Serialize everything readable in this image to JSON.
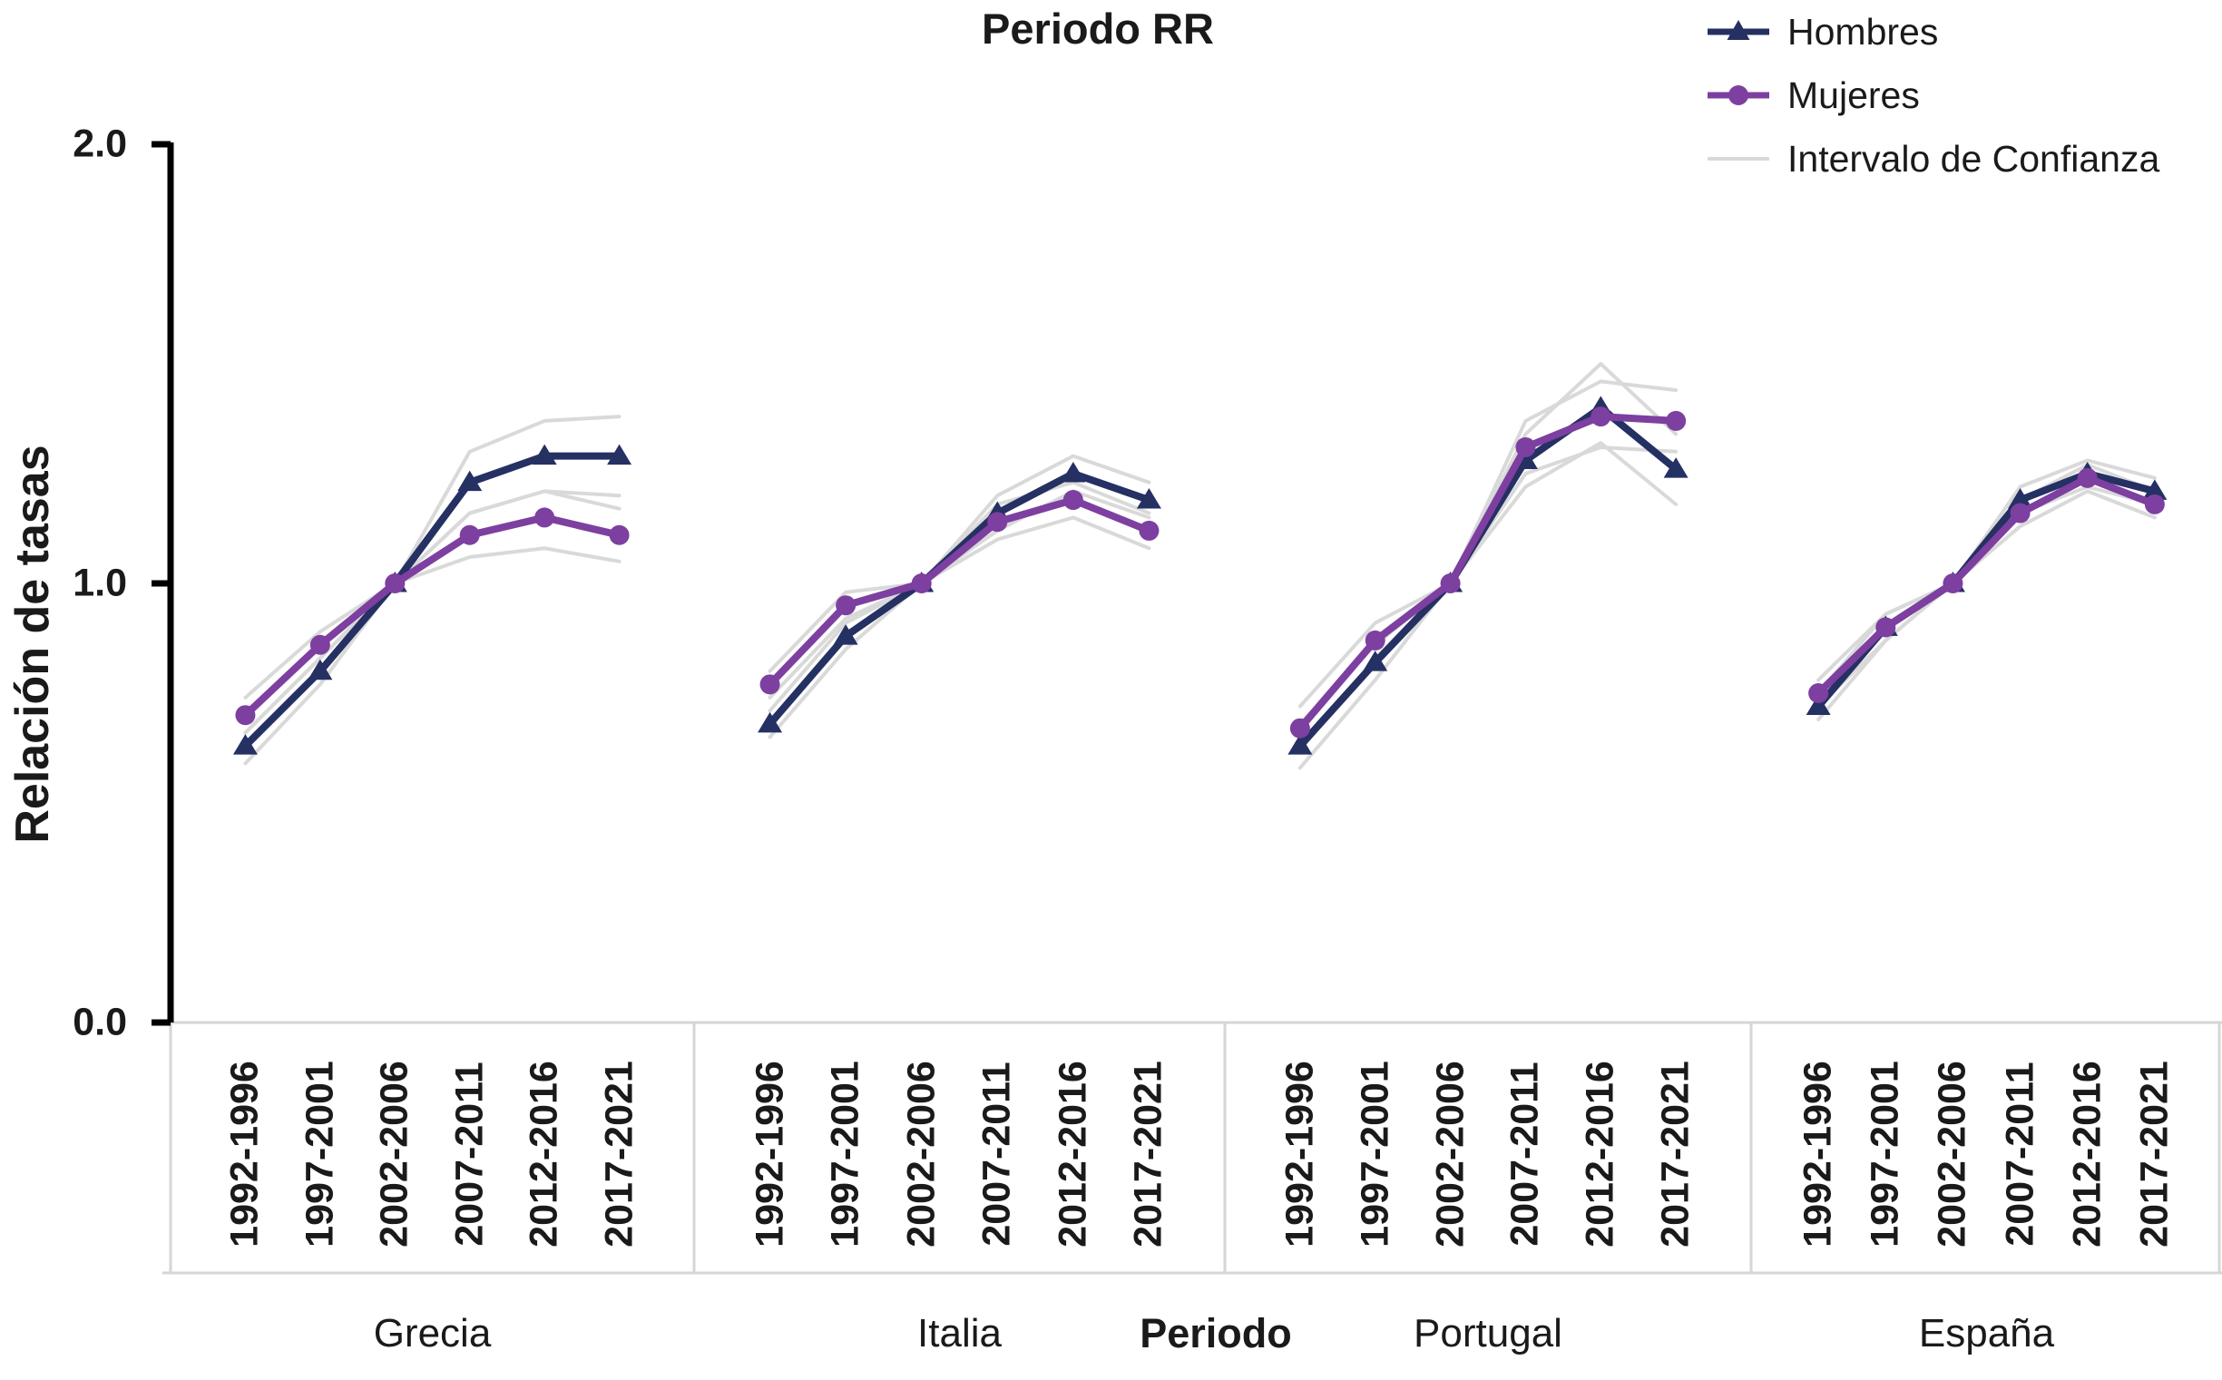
{
  "title": "Periodo RR",
  "y_axis": {
    "label": "Relación de tasas",
    "tick_labels": [
      "0.0",
      "1.0",
      "2.0"
    ]
  },
  "x_axis": {
    "label": "Periodo"
  },
  "legend": [
    {
      "label": "Hombres",
      "swatch": "line-triangle",
      "series": "hombres"
    },
    {
      "label": "Mujeres",
      "swatch": "line-circle",
      "series": "mujeres"
    },
    {
      "label": "Intervalo de Confianza",
      "swatch": "line",
      "series": "ci"
    }
  ],
  "colors": {
    "hombres": "#253063",
    "mujeres": "#7d3fa0",
    "ci": "#d9d9d9",
    "axis": "#000000",
    "band_line": "#d6d6d6",
    "text": "#1a1a1a"
  },
  "chart_data": {
    "type": "line",
    "title": "Periodo RR",
    "xlabel": "Periodo",
    "ylabel": "Relación de tasas",
    "ylim": [
      0.0,
      2.0
    ],
    "y_ticks": [
      0.0,
      1.0,
      2.0
    ],
    "grid": false,
    "legend_position": "top-right",
    "categories": [
      "1992-1996",
      "1997-2001",
      "2002-2006",
      "2007-2011",
      "2012-2016",
      "2017-2021"
    ],
    "reference_period": "2002-2006",
    "panels": [
      {
        "country": "Grecia",
        "series": [
          {
            "name": "Hombres",
            "values": [
              0.63,
              0.8,
              1.0,
              1.23,
              1.29,
              1.29
            ],
            "ci_low": [
              0.59,
              0.77,
              1.0,
              1.16,
              1.21,
              1.2
            ],
            "ci_high": [
              0.66,
              0.83,
              1.0,
              1.3,
              1.37,
              1.38
            ]
          },
          {
            "name": "Mujeres",
            "values": [
              0.7,
              0.86,
              1.0,
              1.11,
              1.15,
              1.11
            ],
            "ci_low": [
              0.66,
              0.83,
              1.0,
              1.06,
              1.08,
              1.05
            ],
            "ci_high": [
              0.74,
              0.89,
              1.0,
              1.16,
              1.21,
              1.17
            ]
          }
        ]
      },
      {
        "country": "Italia",
        "series": [
          {
            "name": "Hombres",
            "values": [
              0.68,
              0.88,
              1.0,
              1.16,
              1.25,
              1.19
            ],
            "ci_low": [
              0.65,
              0.85,
              1.0,
              1.12,
              1.21,
              1.15
            ],
            "ci_high": [
              0.71,
              0.91,
              1.0,
              1.2,
              1.29,
              1.23
            ]
          },
          {
            "name": "Mujeres",
            "values": [
              0.77,
              0.95,
              1.0,
              1.14,
              1.19,
              1.12
            ],
            "ci_low": [
              0.74,
              0.92,
              1.0,
              1.1,
              1.15,
              1.08
            ],
            "ci_high": [
              0.8,
              0.98,
              1.0,
              1.18,
              1.23,
              1.16
            ]
          }
        ]
      },
      {
        "country": "Portugal",
        "series": [
          {
            "name": "Hombres",
            "values": [
              0.63,
              0.82,
              1.0,
              1.28,
              1.4,
              1.26
            ],
            "ci_low": [
              0.58,
              0.78,
              1.0,
              1.22,
              1.32,
              1.18
            ],
            "ci_high": [
              0.68,
              0.86,
              1.0,
              1.34,
              1.5,
              1.34
            ]
          },
          {
            "name": "Mujeres",
            "values": [
              0.67,
              0.87,
              1.0,
              1.31,
              1.38,
              1.37
            ],
            "ci_low": [
              0.62,
              0.83,
              1.0,
              1.25,
              1.31,
              1.3
            ],
            "ci_high": [
              0.72,
              0.91,
              1.0,
              1.37,
              1.46,
              1.44
            ]
          }
        ]
      },
      {
        "country": "España",
        "series": [
          {
            "name": "Hombres",
            "values": [
              0.72,
              0.9,
              1.0,
              1.19,
              1.25,
              1.21
            ],
            "ci_low": [
              0.69,
              0.87,
              1.0,
              1.16,
              1.22,
              1.18
            ],
            "ci_high": [
              0.75,
              0.93,
              1.0,
              1.22,
              1.28,
              1.24
            ]
          },
          {
            "name": "Mujeres",
            "values": [
              0.75,
              0.9,
              1.0,
              1.16,
              1.24,
              1.18
            ],
            "ci_low": [
              0.72,
              0.87,
              1.0,
              1.13,
              1.21,
              1.15
            ],
            "ci_high": [
              0.78,
              0.93,
              1.0,
              1.19,
              1.27,
              1.21
            ]
          }
        ]
      }
    ]
  }
}
